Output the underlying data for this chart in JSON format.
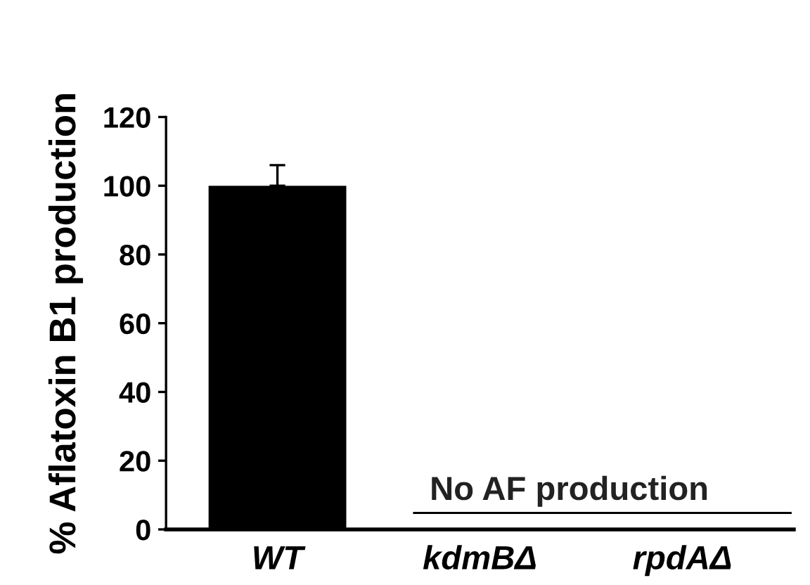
{
  "chart_data": {
    "type": "bar",
    "ylabel": "% Aflatoxin B1 production",
    "categories": [
      "WT",
      "kdmBΔ",
      "rpdAΔ"
    ],
    "values": [
      100,
      0,
      0
    ],
    "errors": [
      6,
      null,
      null
    ],
    "color": "#000000",
    "ylim": [
      0,
      120
    ],
    "yticks": [
      0,
      20,
      40,
      60,
      80,
      100,
      120
    ],
    "grid": false,
    "legend": false,
    "annotations": [
      "No AF production"
    ]
  }
}
